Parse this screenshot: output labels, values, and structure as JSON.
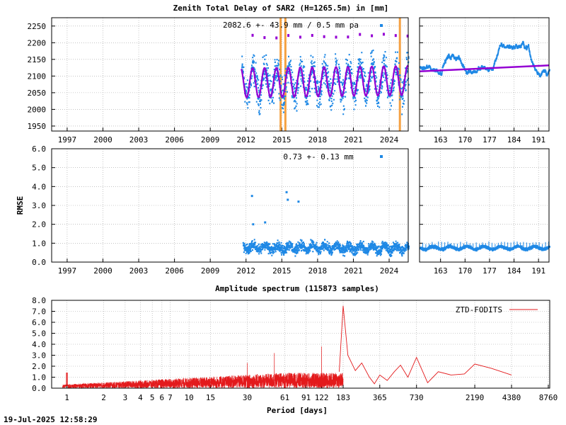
{
  "title": "Zenith Total Delay of SAR2 (H=1265.5m) in [mm]",
  "timestamp": "19-Jul-2025 12:58:29",
  "colors": {
    "ztd_points": "#1e88e5",
    "model": "#9400d3",
    "break_lines": "#f5a142",
    "spectrum": "#e31a1c",
    "grid": "#a0a0a0"
  },
  "chart_data": [
    {
      "type": "scatter",
      "name": "ztd-main",
      "annotation": "2082.6 +-  43.9 mm /  0.5 mm pa",
      "x_ticks": [
        "1997",
        "2000",
        "2003",
        "2006",
        "2009",
        "2012",
        "2015",
        "2018",
        "2021",
        "2024"
      ],
      "xlim": [
        1995.7,
        2025.6
      ],
      "y_ticks": [
        "1950",
        "2000",
        "2050",
        "2100",
        "2150",
        "2200",
        "2250"
      ],
      "ylim": [
        1935,
        2275
      ],
      "data_start": 2011.6,
      "mean": 2082.6,
      "amplitude": 43.9,
      "trend_mm_per_year": 0.5,
      "break_epochs": [
        2014.9,
        2015.3,
        2024.9
      ]
    },
    {
      "type": "scatter",
      "name": "ztd-recent",
      "x_ticks": [
        "163",
        "170",
        "177",
        "184",
        "191"
      ],
      "xlim": [
        157,
        194
      ],
      "ylim": [
        1935,
        2275
      ],
      "model_line": [
        [
          157,
          2114
        ],
        [
          194,
          2132
        ]
      ]
    },
    {
      "type": "scatter",
      "name": "rmse-main",
      "annotation": "0.73 +-  0.13 mm",
      "ylabel": "RMSE",
      "x_ticks": [
        "1997",
        "2000",
        "2003",
        "2006",
        "2009",
        "2012",
        "2015",
        "2018",
        "2021",
        "2024"
      ],
      "xlim": [
        1995.7,
        2025.6
      ],
      "y_ticks": [
        "0.0",
        "1.0",
        "2.0",
        "3.0",
        "4.0",
        "5.0",
        "6.0"
      ],
      "ylim": [
        0,
        6
      ],
      "outliers": [
        [
          2012.5,
          3.5
        ],
        [
          2012.6,
          2.0
        ],
        [
          2013.6,
          2.1
        ],
        [
          2015.4,
          3.7
        ],
        [
          2015.5,
          3.3
        ],
        [
          2016.4,
          3.2
        ]
      ]
    },
    {
      "type": "scatter",
      "name": "rmse-recent",
      "x_ticks": [
        "163",
        "170",
        "177",
        "184",
        "191"
      ],
      "xlim": [
        157,
        194
      ],
      "ylim": [
        0,
        6
      ],
      "level": 0.75
    },
    {
      "type": "line",
      "name": "amplitude-spectrum",
      "title": "Amplitude spectrum (115873 samples)",
      "xlabel": "Period [days]",
      "x_scale": "log",
      "x_ticks": [
        "1",
        "2",
        "3",
        "4",
        "5",
        "6",
        "7",
        "10",
        "15",
        "30",
        "61",
        "91",
        "122",
        "183",
        "365",
        "730",
        "2190",
        "4380",
        "8760"
      ],
      "xlim": [
        0.75,
        9000
      ],
      "y_ticks": [
        "0.0",
        "1.0",
        "2.0",
        "3.0",
        "4.0",
        "5.0",
        "6.0",
        "7.0",
        "8.0"
      ],
      "ylim": [
        0,
        8
      ],
      "legend": {
        "label": "ZTD-FODITS",
        "position": "top-right"
      },
      "peaks": [
        [
          1,
          1.4
        ],
        [
          30,
          2.3
        ],
        [
          50,
          3.2
        ],
        [
          122,
          3.8
        ],
        [
          183,
          7.5
        ],
        [
          365,
          1.2
        ],
        [
          730,
          2.8
        ],
        [
          2190,
          2.2
        ]
      ],
      "tail": [
        [
          183,
          7.5
        ],
        [
          200,
          3.0
        ],
        [
          230,
          1.6
        ],
        [
          260,
          2.3
        ],
        [
          300,
          1.0
        ],
        [
          330,
          0.4
        ],
        [
          365,
          1.2
        ],
        [
          420,
          0.7
        ],
        [
          480,
          1.5
        ],
        [
          540,
          2.1
        ],
        [
          620,
          1.0
        ],
        [
          730,
          2.8
        ],
        [
          900,
          0.5
        ],
        [
          1100,
          1.5
        ],
        [
          1400,
          1.2
        ],
        [
          1800,
          1.3
        ],
        [
          2190,
          2.2
        ],
        [
          3000,
          1.8
        ],
        [
          4380,
          1.2
        ]
      ]
    }
  ]
}
